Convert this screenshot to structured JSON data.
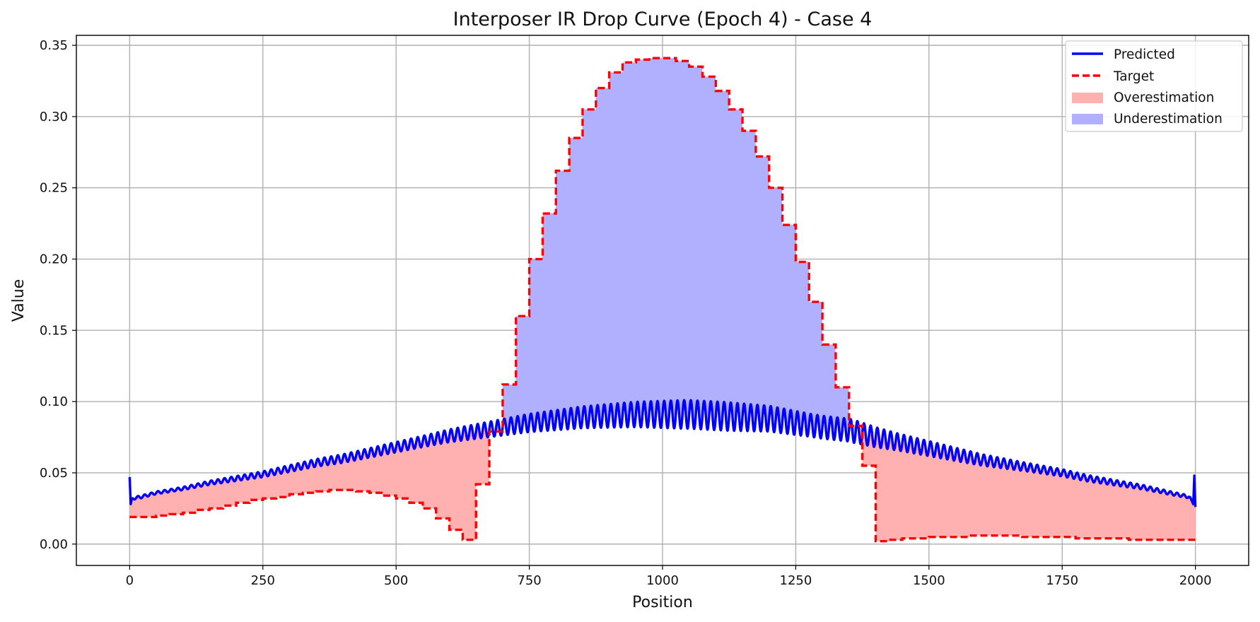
{
  "chart_data": {
    "type": "line",
    "title": "Interposer IR Drop Curve (Epoch 4) - Case 4",
    "xlabel": "Position",
    "ylabel": "Value",
    "xlim": [
      -100,
      2100
    ],
    "ylim": [
      -0.015,
      0.357
    ],
    "x_ticks": [
      0,
      250,
      500,
      750,
      1000,
      1250,
      1500,
      1750,
      2000
    ],
    "x_tick_labels": [
      "0",
      "250",
      "500",
      "750",
      "1000",
      "1250",
      "1500",
      "1750",
      "2000"
    ],
    "y_ticks": [
      0.0,
      0.05,
      0.1,
      0.15,
      0.2,
      0.25,
      0.3,
      0.35
    ],
    "y_tick_labels": [
      "0.00",
      "0.05",
      "0.10",
      "0.15",
      "0.20",
      "0.25",
      "0.30",
      "0.35"
    ],
    "grid": true,
    "legend_position": "top-right",
    "series": [
      {
        "name": "Predicted",
        "style": "solid",
        "color": "#0000ff",
        "x": [
          0,
          2,
          4,
          20,
          50,
          100,
          150,
          200,
          250,
          300,
          350,
          400,
          450,
          500,
          550,
          600,
          650,
          700,
          750,
          800,
          850,
          900,
          950,
          1000,
          1050,
          1100,
          1150,
          1200,
          1250,
          1300,
          1350,
          1400,
          1450,
          1500,
          1550,
          1600,
          1650,
          1700,
          1750,
          1800,
          1850,
          1900,
          1950,
          1990,
          1996,
          1998,
          2000
        ],
        "y": [
          0.047,
          0.028,
          0.032,
          0.033,
          0.036,
          0.039,
          0.043,
          0.046,
          0.049,
          0.053,
          0.057,
          0.06,
          0.064,
          0.068,
          0.072,
          0.076,
          0.079,
          0.082,
          0.085,
          0.087,
          0.089,
          0.09,
          0.091,
          0.091,
          0.091,
          0.09,
          0.089,
          0.088,
          0.085,
          0.082,
          0.08,
          0.075,
          0.071,
          0.067,
          0.063,
          0.059,
          0.056,
          0.053,
          0.05,
          0.046,
          0.043,
          0.04,
          0.036,
          0.033,
          0.028,
          0.048,
          0.026
        ],
        "oscillation_amplitude": [
          0.001,
          0.001,
          0.0015,
          0.002,
          0.0025,
          0.003,
          0.0035,
          0.004,
          0.005,
          0.006,
          0.007,
          0.008,
          0.009,
          0.01,
          0.01,
          0.009,
          0.008,
          0.008,
          0.006,
          0.005,
          0.004,
          0.003,
          0.0025,
          0.002,
          0.0015,
          0.001
        ]
      },
      {
        "name": "Target",
        "style": "dashed",
        "color": "#ff0000",
        "x": [
          0,
          25,
          50,
          75,
          100,
          125,
          150,
          175,
          200,
          225,
          250,
          275,
          300,
          325,
          350,
          375,
          400,
          425,
          450,
          475,
          500,
          525,
          550,
          575,
          600,
          625,
          650,
          675,
          700,
          725,
          750,
          775,
          800,
          825,
          850,
          875,
          900,
          925,
          950,
          975,
          1000,
          1025,
          1050,
          1075,
          1100,
          1125,
          1150,
          1175,
          1200,
          1225,
          1250,
          1275,
          1300,
          1325,
          1350,
          1375,
          1400,
          1425,
          1450,
          1475,
          1500,
          1525,
          1550,
          1575,
          1600,
          1625,
          1650,
          1675,
          1700,
          1725,
          1750,
          1775,
          1800,
          1825,
          1850,
          1875,
          1900,
          1925,
          1950,
          1975,
          2000
        ],
        "y": [
          0.019,
          0.019,
          0.02,
          0.021,
          0.022,
          0.024,
          0.025,
          0.027,
          0.029,
          0.031,
          0.032,
          0.033,
          0.035,
          0.036,
          0.037,
          0.038,
          0.038,
          0.037,
          0.036,
          0.034,
          0.032,
          0.029,
          0.025,
          0.018,
          0.01,
          0.003,
          0.042,
          0.079,
          0.112,
          0.16,
          0.2,
          0.232,
          0.262,
          0.285,
          0.305,
          0.32,
          0.331,
          0.338,
          0.34,
          0.341,
          0.341,
          0.339,
          0.335,
          0.328,
          0.318,
          0.305,
          0.29,
          0.272,
          0.25,
          0.224,
          0.198,
          0.17,
          0.14,
          0.11,
          0.083,
          0.055,
          0.002,
          0.003,
          0.004,
          0.004,
          0.005,
          0.005,
          0.005,
          0.006,
          0.006,
          0.006,
          0.006,
          0.005,
          0.005,
          0.005,
          0.005,
          0.004,
          0.004,
          0.004,
          0.004,
          0.003,
          0.003,
          0.003,
          0.003,
          0.003,
          0.003
        ]
      }
    ],
    "fill_legend": [
      {
        "name": "Overestimation",
        "color": "#ffb0b0"
      },
      {
        "name": "Underestimation",
        "color": "#b0b0ff"
      }
    ]
  }
}
